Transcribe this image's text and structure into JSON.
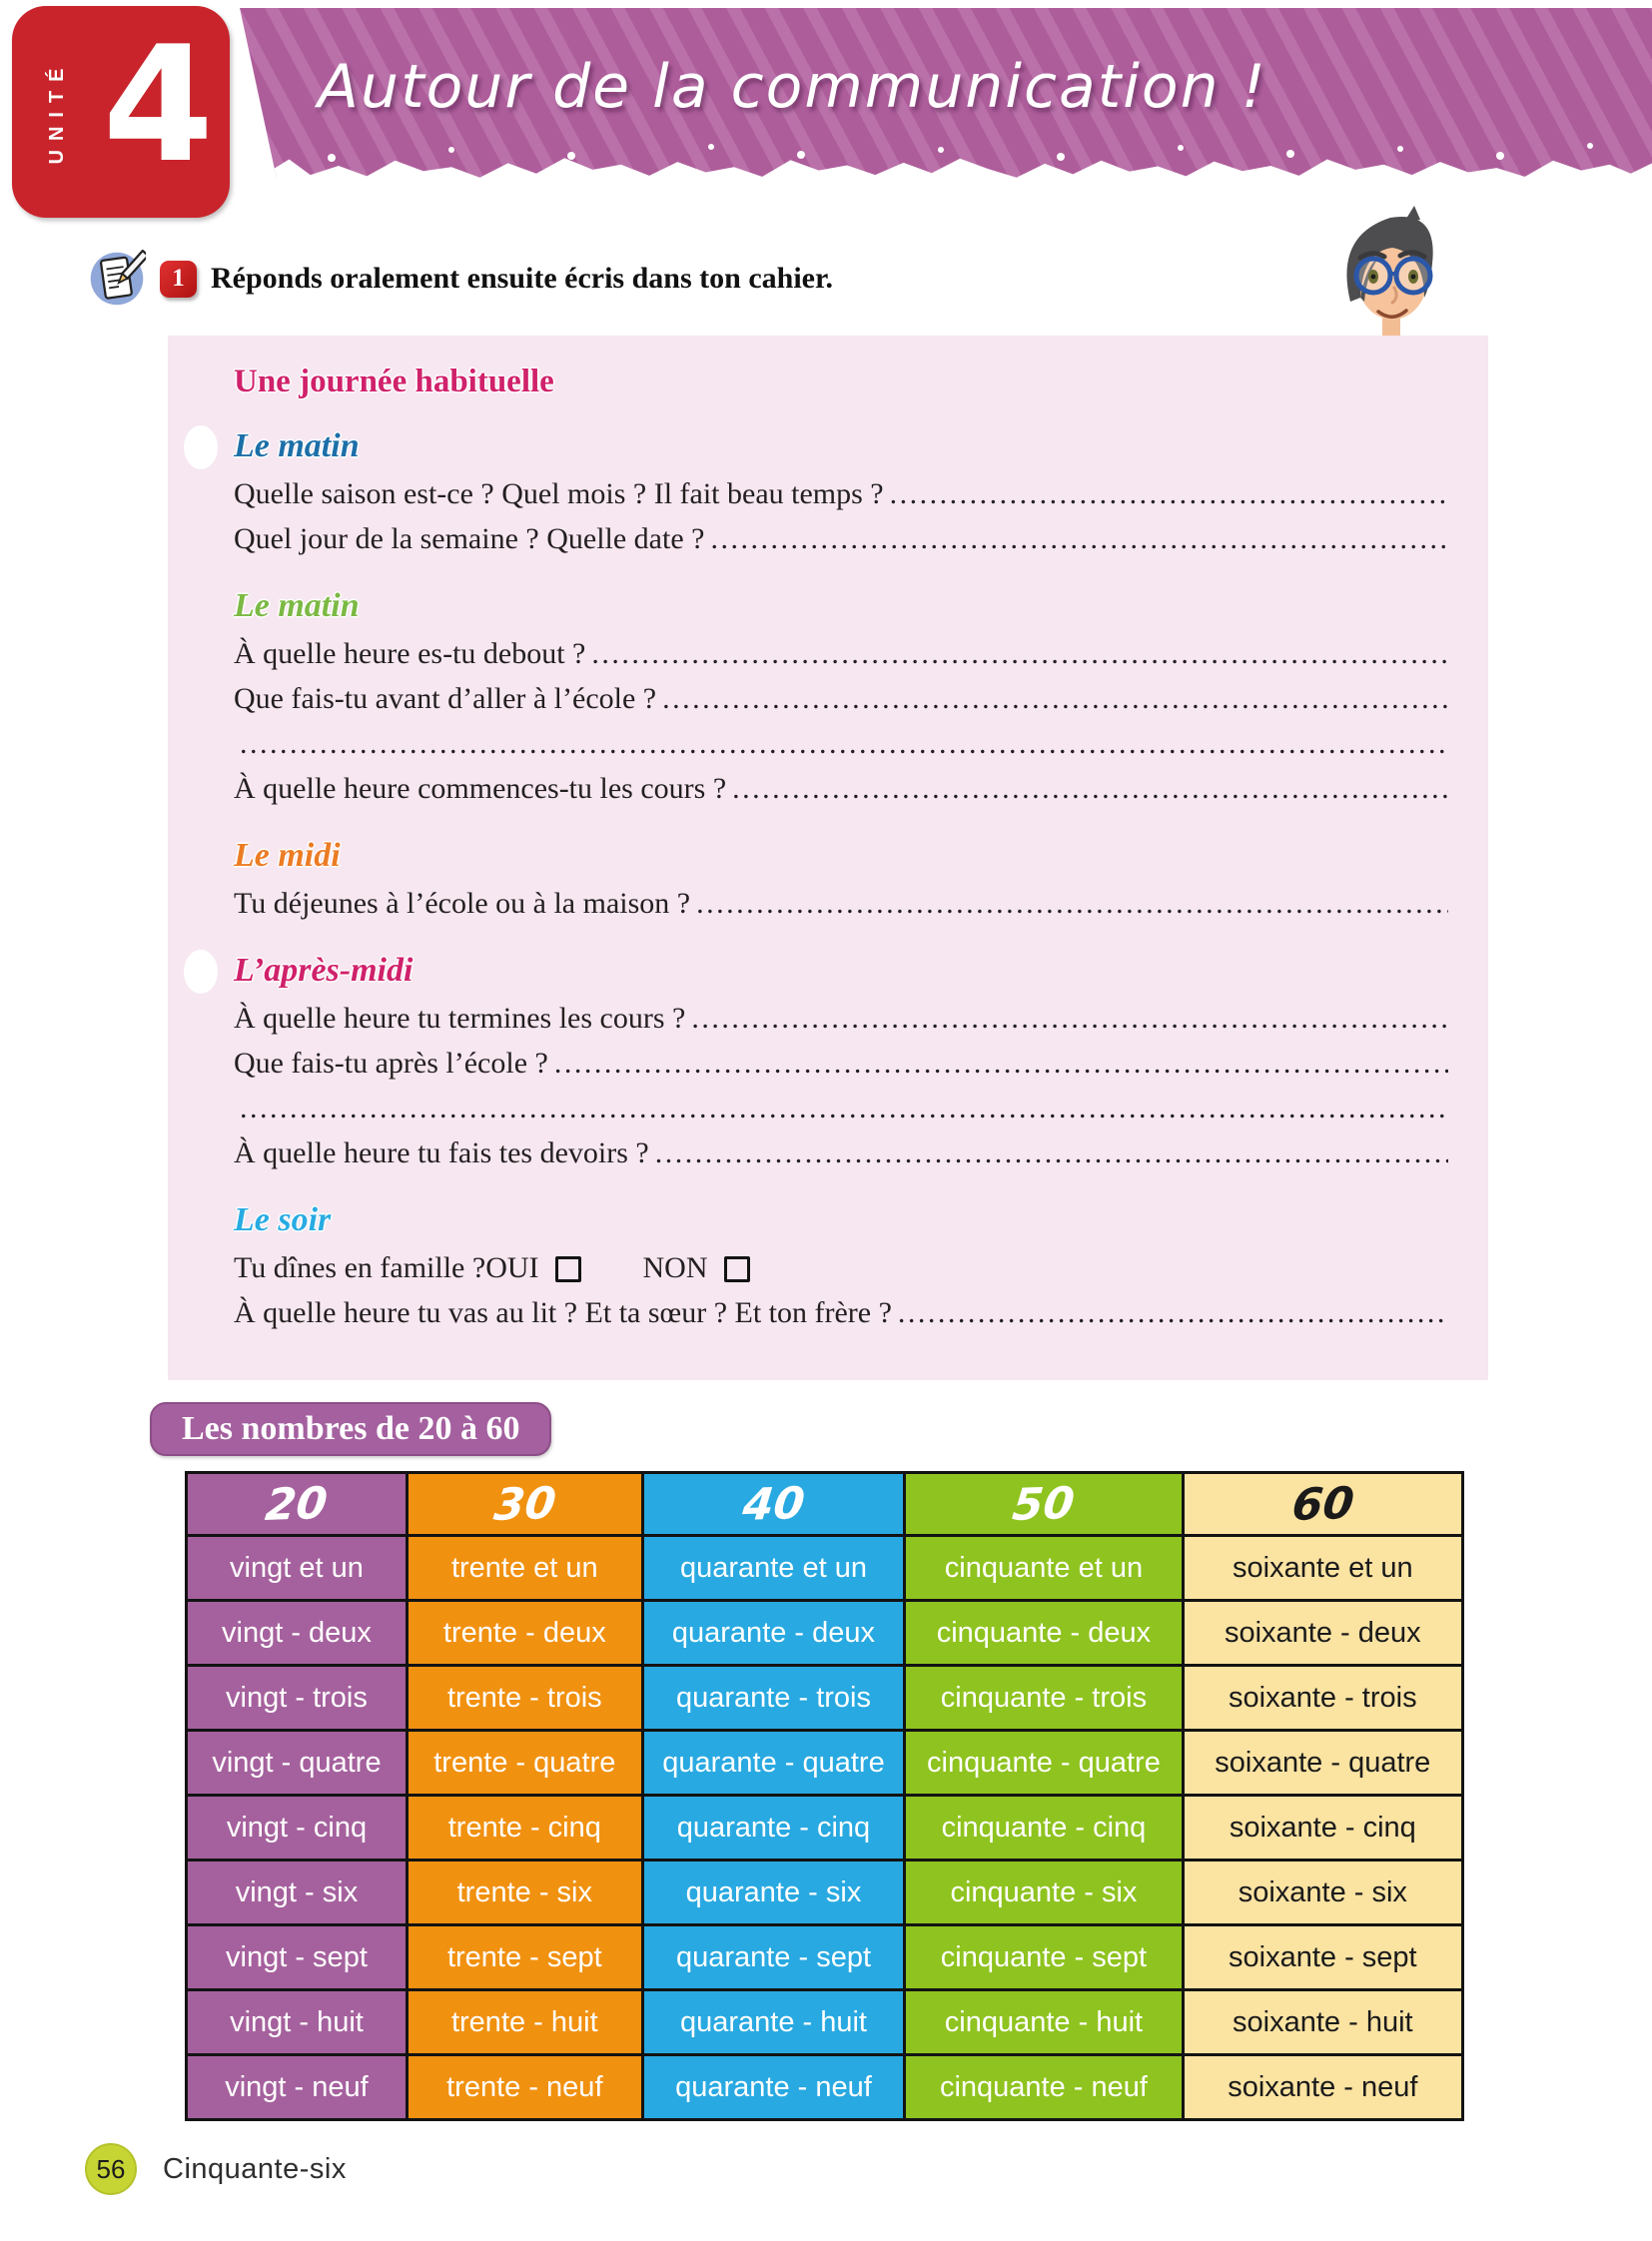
{
  "header": {
    "unit_label": "UNITÉ",
    "unit_number": "4",
    "title": "Autour de la communication !",
    "tab_color": "#c9242b",
    "banner_color": "#b2619f"
  },
  "exercise": {
    "icon": "notepad-pencil-icon",
    "badge": "1",
    "instruction": "Réponds oralement ensuite écris dans ton cahier."
  },
  "worksheet": {
    "bg_color": "#f7e7f0",
    "title": "Une journée habituelle",
    "title_color": "#d0216b",
    "sections": [
      {
        "heading": "Le matin",
        "heading_color": "#1d6fa8",
        "bullet": true,
        "lines": [
          {
            "text": "Quelle saison est-ce ? Quel mois ? Il fait beau temps ?",
            "dots": true
          },
          {
            "text": "Quel jour de la semaine ? Quelle date ?",
            "dots": true
          }
        ]
      },
      {
        "heading": "Le matin",
        "heading_color": "#7cb944",
        "bullet": false,
        "lines": [
          {
            "text": "À quelle heure es-tu debout ?",
            "dots": true
          },
          {
            "text": "Que fais-tu avant d’aller à l’école ?",
            "dots": true
          },
          {
            "text": "",
            "dots": true
          },
          {
            "text": "À quelle heure commences-tu les cours ?",
            "dots": true
          }
        ]
      },
      {
        "heading": "Le midi",
        "heading_color": "#ec7c24",
        "bullet": false,
        "lines": [
          {
            "text": "Tu déjeunes à l’école ou à la maison ?",
            "dots": true
          }
        ]
      },
      {
        "heading": "L’après-midi",
        "heading_color": "#d0216b",
        "bullet": true,
        "lines": [
          {
            "text": "À quelle heure tu termines les cours ?",
            "dots": true
          },
          {
            "text": "Que fais-tu après l’école ?",
            "dots": true
          },
          {
            "text": "",
            "dots": true
          },
          {
            "text": "À quelle heure tu fais tes devoirs ?",
            "dots": true
          }
        ]
      },
      {
        "heading": "Le soir",
        "heading_color": "#29abe2",
        "bullet": false,
        "lines": [
          {
            "text": "Tu dînes en famille ?",
            "dots": false,
            "options": [
              "OUI",
              "NON"
            ]
          },
          {
            "text": "À quelle heure tu vas au lit ? Et ta sœur ? Et ton frère ?",
            "dots": true
          }
        ]
      }
    ]
  },
  "numbers_table": {
    "title": "Les nombres de 20 à 60",
    "title_bg": "#a4609f",
    "columns": [
      {
        "header": "20",
        "bg": "#a5619d",
        "text": "#ffffff",
        "cells": [
          "vingt et un",
          "vingt - deux",
          "vingt - trois",
          "vingt - quatre",
          "vingt - cinq",
          "vingt - six",
          "vingt - sept",
          "vingt - huit",
          "vingt - neuf"
        ]
      },
      {
        "header": "30",
        "bg": "#f19110",
        "text": "#ffffff",
        "cells": [
          "trente et un",
          "trente - deux",
          "trente - trois",
          "trente - quatre",
          "trente - cinq",
          "trente - six",
          "trente - sept",
          "trente - huit",
          "trente - neuf"
        ]
      },
      {
        "header": "40",
        "bg": "#29a9e1",
        "text": "#ffffff",
        "cells": [
          "quarante et un",
          "quarante - deux",
          "quarante - trois",
          "quarante - quatre",
          "quarante - cinq",
          "quarante - six",
          "quarante - sept",
          "quarante - huit",
          "quarante - neuf"
        ]
      },
      {
        "header": "50",
        "bg": "#8fc31f",
        "text": "#ffffff",
        "cells": [
          "cinquante et un",
          "cinquante - deux",
          "cinquante - trois",
          "cinquante - quatre",
          "cinquante - cinq",
          "cinquante - six",
          "cinquante - sept",
          "cinquante - huit",
          "cinquante - neuf"
        ]
      },
      {
        "header": "60",
        "bg": "#fbe3a2",
        "text": "#1a1a1a",
        "cells": [
          "soixante et un",
          "soixante - deux",
          "soixante - trois",
          "soixante - quatre",
          "soixante - cinq",
          "soixante - six",
          "soixante - sept",
          "soixante - huit",
          "soixante - neuf"
        ]
      }
    ]
  },
  "footer": {
    "page_number": "56",
    "page_number_bg": "#c6d434",
    "page_label": "Cinquante-six"
  }
}
